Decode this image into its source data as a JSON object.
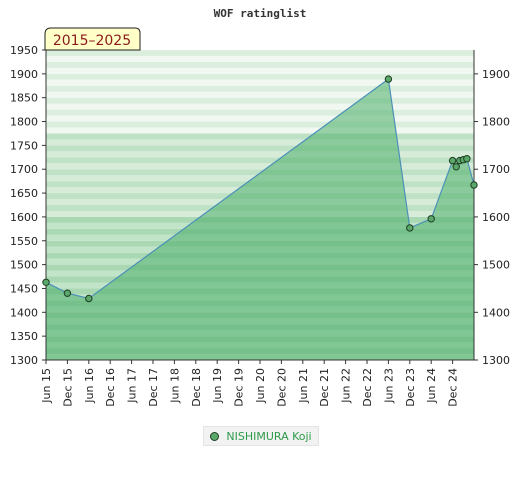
{
  "chart_data": {
    "type": "area",
    "title": "WOF ratinglist",
    "period_badge": "2015–2025",
    "ylim": [
      1300,
      1950
    ],
    "y_ticks_left": [
      1950,
      1900,
      1850,
      1800,
      1750,
      1700,
      1650,
      1600,
      1550,
      1500,
      1450,
      1400,
      1350,
      1300
    ],
    "y_ticks_right": [
      1900,
      1800,
      1700,
      1600,
      1500,
      1400,
      1300
    ],
    "x_tick_labels": [
      "Jun 15",
      "Dec 15",
      "Jun 16",
      "Dec 16",
      "Jun 17",
      "Dec 17",
      "Jun 18",
      "Dec 18",
      "Jun 19",
      "Dec 19",
      "Jun 20",
      "Dec 20",
      "Jun 21",
      "Dec 21",
      "Jun 22",
      "Dec 22",
      "Jun 23",
      "Dec 23",
      "Jun 24",
      "Dec 24"
    ],
    "series": [
      {
        "name": "NISHIMURA Koji",
        "x": [
          "2015-06",
          "2015-12",
          "2016-06",
          "2023-06",
          "2023-12",
          "2024-06",
          "2024-12",
          "2025-01",
          "2025-02",
          "2025-03",
          "2025-04",
          "2025-06"
        ],
        "y": [
          1463,
          1440,
          1429,
          1889,
          1577,
          1596,
          1718,
          1705,
          1718,
          1720,
          1722,
          1667
        ]
      }
    ],
    "colors": {
      "line": "#4a90b8",
      "area": "#4caf6a",
      "marker": "#5aa86a",
      "legend_text": "#2e9a4a"
    },
    "legend_placement": "bottom"
  }
}
